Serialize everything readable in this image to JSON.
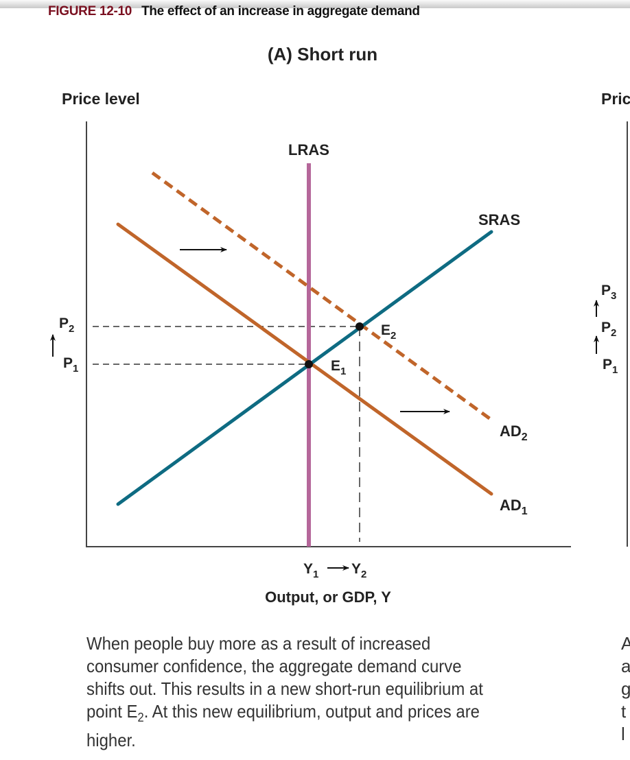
{
  "figure": {
    "number": "FIGURE 12-10",
    "title": "The effect of an increase in aggregate demand"
  },
  "panel_a": {
    "title": "(A) Short run",
    "y_axis_label": "Price level",
    "x_axis_label": "Output, or GDP, Y",
    "curves": {
      "lras": "LRAS",
      "sras": "SRAS",
      "ad1": {
        "base": "AD",
        "sub": "1"
      },
      "ad2": {
        "base": "AD",
        "sub": "2"
      }
    },
    "points": {
      "e1": {
        "base": "E",
        "sub": "1"
      },
      "e2": {
        "base": "E",
        "sub": "2"
      }
    },
    "price_ticks": {
      "p1": {
        "base": "P",
        "sub": "1"
      },
      "p2": {
        "base": "P",
        "sub": "2"
      }
    },
    "output_ticks": {
      "y1": {
        "base": "Y",
        "sub": "1"
      },
      "y2": {
        "base": "Y",
        "sub": "2"
      }
    },
    "colors": {
      "lras": "#b5679a",
      "sras": "#0e6b82",
      "ad": "#c0652a"
    },
    "caption": {
      "before": "When people buy more as a result of increased consumer confidence, the aggregate demand curve shifts out. This results in a new short-run equilibrium at point E",
      "sub": "2",
      "after": ". At this new equilibrium, output and prices are higher."
    }
  },
  "panel_b_partial": {
    "y_axis_label": "Pric",
    "price_ticks": {
      "p3": {
        "base": "P",
        "sub": "3"
      },
      "p2": {
        "base": "P",
        "sub": "2"
      },
      "p1": {
        "base": "P",
        "sub": "1"
      }
    },
    "caption_fragments": [
      "A",
      "a",
      "g",
      "t",
      "l"
    ]
  }
}
